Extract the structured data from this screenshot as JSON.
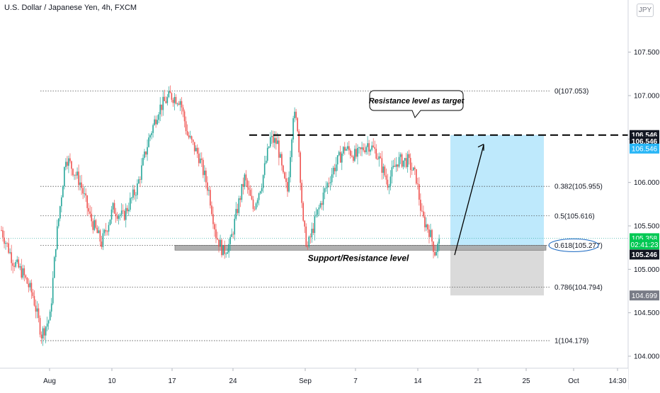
{
  "header": {
    "title": "U.S. Dollar / Japanese Yen, 4h, FXCM",
    "currency_badge": "JPY"
  },
  "colors": {
    "up": "#26a69a",
    "down": "#ef5350",
    "target_zone": "#b3e5fc",
    "stop_zone": "#d6d6d6",
    "current_price_bg": "#00c853",
    "tag_dark": "#131722",
    "tag_blue": "#29b6f6",
    "tag_gray": "#787b86"
  },
  "chart_data": {
    "type": "candlestick",
    "x_tick_labels": [
      "Aug",
      "10",
      "17",
      "24",
      "Sep",
      "7",
      "14",
      "21",
      "25",
      "Oct",
      "14:30"
    ],
    "y_tick_labels": [
      "107.500",
      "107.000",
      "106.500",
      "106.000",
      "105.500",
      "105.000",
      "104.500",
      "104.000"
    ],
    "y_ticks": [
      107.5,
      107.0,
      106.5,
      106.0,
      105.5,
      105.0,
      104.5,
      104.0
    ],
    "ylim": [
      103.85,
      107.85
    ],
    "grid": false,
    "fib_levels": [
      {
        "ratio": "0",
        "price": 107.053,
        "label": "0(107.053)"
      },
      {
        "ratio": "0.382",
        "price": 105.955,
        "label": "0.382(105.955)"
      },
      {
        "ratio": "0.5",
        "price": 105.616,
        "label": "0.5(105.616)"
      },
      {
        "ratio": "0.618",
        "price": 105.277,
        "label": "0.618(105.277)"
      },
      {
        "ratio": "0.786",
        "price": 104.794,
        "label": "0.786(104.794)"
      },
      {
        "ratio": "1",
        "price": 104.179,
        "label": "1(104.179)"
      }
    ],
    "price_tags": [
      {
        "text": "106.546",
        "price": 106.546,
        "style": "dark"
      },
      {
        "text": "106.546",
        "price": 106.474,
        "style": "dark"
      },
      {
        "text": "106.546",
        "price": 106.39,
        "style": "blue"
      },
      {
        "text": "105.358",
        "price": 105.358,
        "style": "green"
      },
      {
        "text": "02:41:23",
        "price": 105.286,
        "style": "green"
      },
      {
        "text": "105.246",
        "price": 105.17,
        "style": "dark"
      },
      {
        "text": "104.699",
        "price": 104.699,
        "style": "gray"
      }
    ],
    "resistance_level": 106.546,
    "support_zone": [
      105.22,
      105.277
    ],
    "current_price": 105.358,
    "trade": {
      "entry": 105.246,
      "target": 106.546,
      "stop": 104.699
    },
    "annotations": {
      "resistance_callout": "Resistance level as target",
      "support_label": "Support/Resistance level"
    },
    "candle_count": 320,
    "candle_anchors": [
      [
        0,
        105.45
      ],
      [
        8,
        105.1
      ],
      [
        15,
        104.95
      ],
      [
        22,
        104.7
      ],
      [
        28,
        104.25
      ],
      [
        34,
        104.45
      ],
      [
        38,
        105.3
      ],
      [
        45,
        106.3
      ],
      [
        55,
        106.0
      ],
      [
        62,
        105.6
      ],
      [
        70,
        105.3
      ],
      [
        78,
        105.7
      ],
      [
        85,
        105.6
      ],
      [
        95,
        105.95
      ],
      [
        103,
        106.5
      ],
      [
        110,
        106.85
      ],
      [
        118,
        107.0
      ],
      [
        125,
        106.95
      ],
      [
        130,
        106.55
      ],
      [
        138,
        106.3
      ],
      [
        145,
        105.9
      ],
      [
        150,
        105.4
      ],
      [
        155,
        105.2
      ],
      [
        160,
        105.3
      ],
      [
        165,
        105.7
      ],
      [
        170,
        106.05
      ],
      [
        176,
        105.7
      ],
      [
        182,
        106.0
      ],
      [
        188,
        106.5
      ],
      [
        193,
        106.45
      ],
      [
        197,
        106.05
      ],
      [
        200,
        105.9
      ],
      [
        204,
        106.8
      ],
      [
        207,
        106.65
      ],
      [
        211,
        105.5
      ],
      [
        214,
        105.25
      ],
      [
        220,
        105.6
      ],
      [
        226,
        105.9
      ],
      [
        232,
        106.15
      ],
      [
        240,
        106.4
      ],
      [
        248,
        106.3
      ],
      [
        256,
        106.45
      ],
      [
        262,
        106.35
      ],
      [
        270,
        106.0
      ],
      [
        277,
        106.25
      ],
      [
        284,
        106.25
      ],
      [
        290,
        106.05
      ],
      [
        294,
        105.6
      ],
      [
        299,
        105.45
      ],
      [
        303,
        105.2
      ],
      [
        306,
        105.3
      ]
    ]
  }
}
